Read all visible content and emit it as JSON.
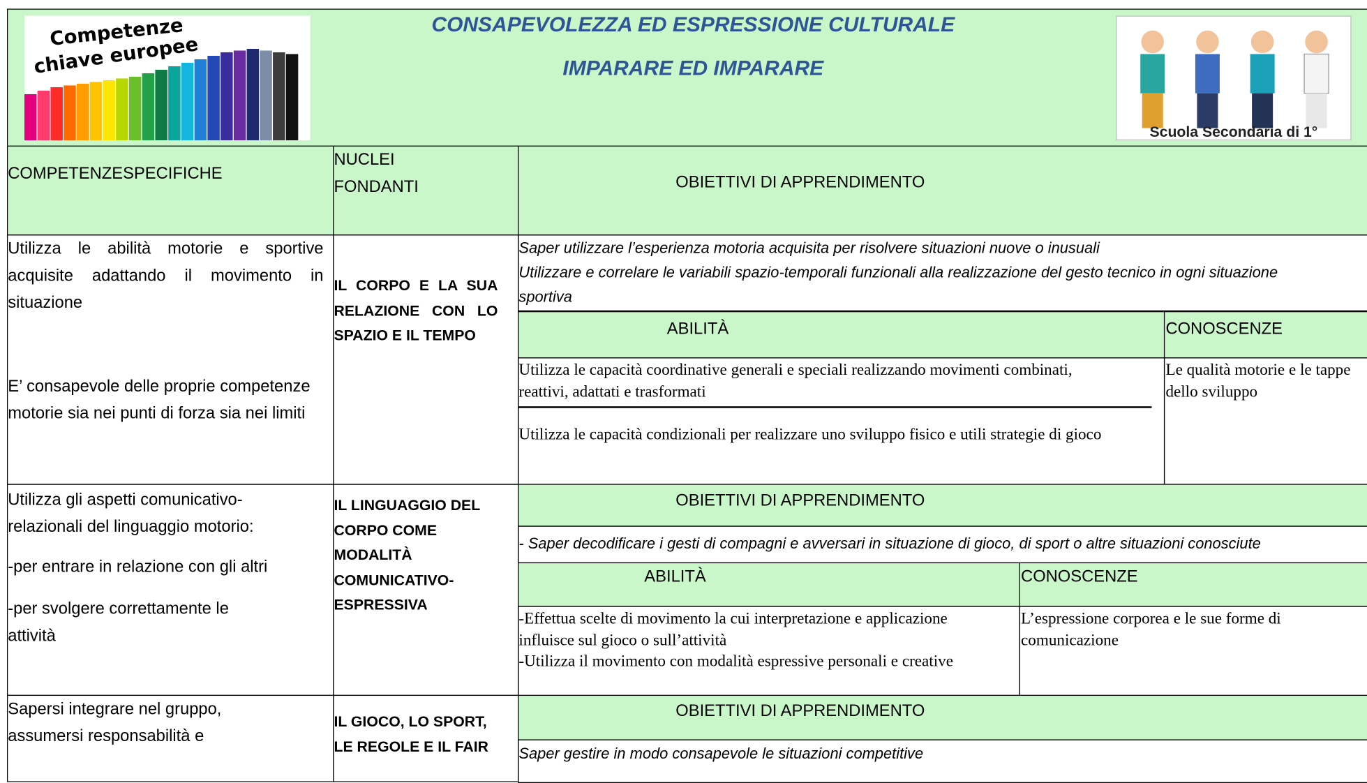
{
  "header": {
    "logo_text": [
      "Competenze",
      "chiave europee"
    ],
    "title_lines": [
      "CONSAPEVOLEZZA ED ESPRESSIONE CULTURALE",
      "IMPARARE ED IMPARARE"
    ],
    "school_label": "Scuola Secondaria di 1°"
  },
  "table": {
    "columns": [
      "COMPETENZESPECIFICHE",
      "NUCLEI FONDANTI",
      "OBIETTIVI DI APPRENDIMENTO"
    ],
    "rows": [
      {
        "competenze": [
          "Utilizza le abilità motorie e sportive acquisite adattando il movimento in situazione",
          "E’ consapevole delle proprie competenze motorie sia nei punti di forza sia nei limiti"
        ],
        "nucleo": "IL CORPO E LA SUA RELAZIONE CON LO SPAZIO E IL TEMPO",
        "obiettivi": [
          "Saper utilizzare l’esperienza motoria acquisita per risolvere situazioni nuove o inusuali",
          "Utilizzare e correlare le variabili spazio-temporali funzionali alla realizzazione del gesto tecnico in ogni situazione sportiva"
        ],
        "abilita_header": "ABILITÀ",
        "conoscenze_header": "CONOSCENZE",
        "abilita": [
          "Utilizza le capacità coordinative generali e speciali realizzando movimenti combinati, reattivi, adattati e trasformati",
          "Utilizza le capacità condizionali per realizzare uno sviluppo fisico e utili strategie di gioco"
        ],
        "conoscenze": "Le qualità motorie e le tappe dello sviluppo"
      },
      {
        "competenze": [
          "Utilizza gli aspetti comunicativo-relazionali del linguaggio motorio:",
          "-per entrare in relazione con gli altri",
          "-per svolgere correttamente le attività"
        ],
        "nucleo": "IL LINGUAGGIO DEL CORPO COME MODALITÀ COMUNICATIVO-ESPRESSIVA",
        "obiettivi_header": "OBIETTIVI DI APPRENDIMENTO",
        "obiettivi": [
          "- Saper decodificare i gesti di compagni e avversari in situazione di gioco, di sport o altre situazioni conosciute"
        ],
        "abilita_header": "ABILITÀ",
        "conoscenze_header": "CONOSCENZE",
        "abilita": [
          "-Effettua scelte di movimento la cui interpretazione e applicazione influisce sul gioco o sull’attività",
          "-Utilizza il movimento con modalità espressive personali e creative"
        ],
        "conoscenze": "L’espressione corporea e le sue forme di comunicazione"
      },
      {
        "competenze": [
          "Sapersi integrare nel gruppo, assumersi responsabilità e"
        ],
        "nucleo": "IL GIOCO, LO SPORT, LE REGOLE E IL FAIR",
        "obiettivi_header": "OBIETTIVI DI APPRENDIMENTO",
        "obiettivi": [
          "Saper gestire in modo consapevole le situazioni competitive"
        ]
      }
    ]
  }
}
